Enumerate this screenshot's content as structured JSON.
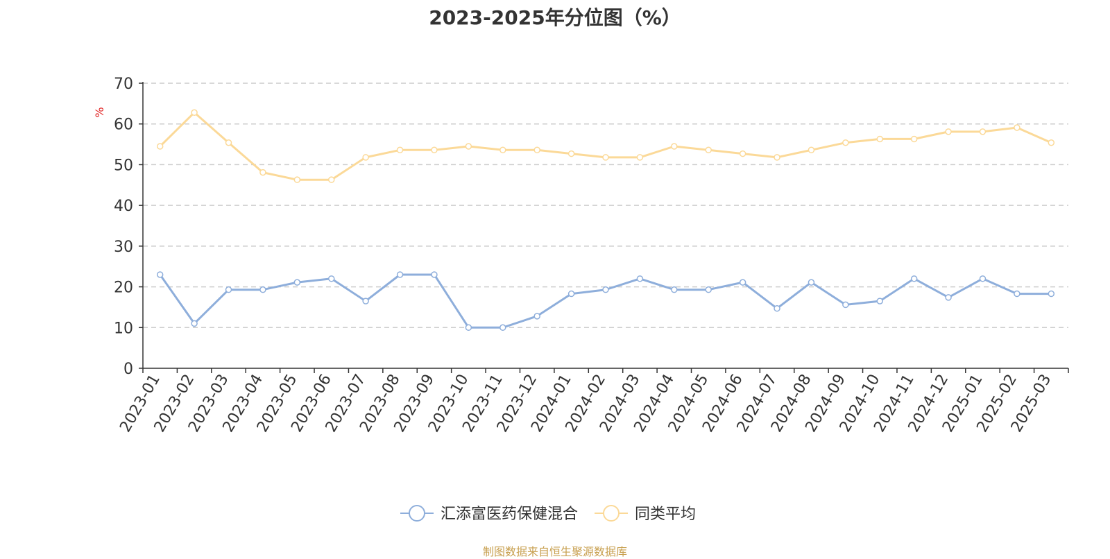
{
  "chart_data": {
    "type": "line",
    "title": "2023-2025年分位图（%）",
    "ylabel": "%",
    "ylim": [
      0,
      70
    ],
    "yticks": [
      0,
      10,
      20,
      30,
      40,
      50,
      60,
      70
    ],
    "grid": true,
    "legend_position": "bottom",
    "categories": [
      "2023-01",
      "2023-02",
      "2023-03",
      "2023-04",
      "2023-05",
      "2023-06",
      "2023-07",
      "2023-08",
      "2023-09",
      "2023-10",
      "2023-11",
      "2023-12",
      "2024-01",
      "2024-02",
      "2024-03",
      "2024-04",
      "2024-05",
      "2024-06",
      "2024-07",
      "2024-08",
      "2024-09",
      "2024-10",
      "2024-11",
      "2024-12",
      "2025-01",
      "2025-02",
      "2025-03"
    ],
    "series": [
      {
        "name": "汇添富医药保健混合",
        "color": "#8eaedb",
        "values": [
          23,
          11,
          19.3,
          19.3,
          21.1,
          22,
          16.5,
          23,
          23,
          10,
          10,
          12.8,
          18.3,
          19.3,
          22,
          19.3,
          19.3,
          21.1,
          14.7,
          21.1,
          15.6,
          16.5,
          22,
          17.4,
          22,
          18.3,
          18.3
        ]
      },
      {
        "name": "同类平均",
        "color": "#fbd998",
        "values": [
          54.5,
          62.8,
          55.4,
          48.1,
          46.3,
          46.3,
          51.8,
          53.6,
          53.6,
          54.5,
          53.6,
          53.6,
          52.7,
          51.8,
          51.8,
          54.5,
          53.6,
          52.7,
          51.8,
          53.6,
          55.4,
          56.3,
          56.3,
          58.1,
          58.1,
          59.1,
          55.4
        ]
      }
    ]
  },
  "source_note": "制图数据来自恒生聚源数据库"
}
